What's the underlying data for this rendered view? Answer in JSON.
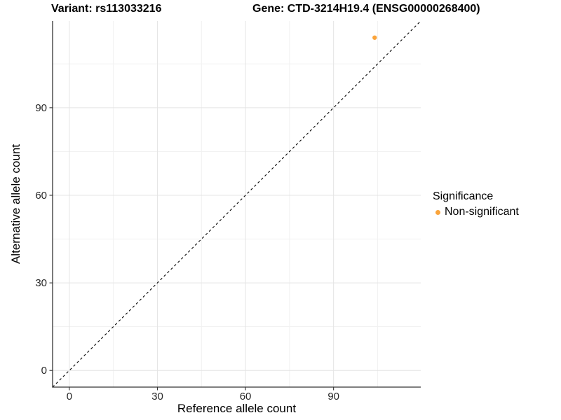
{
  "chart_data": {
    "type": "scatter",
    "title_left": "Variant: rs113033216",
    "title_right": "Gene: CTD-3214H19.4 (ENSG00000268400)",
    "xlabel": "Reference allele count",
    "ylabel": "Alternative allele count",
    "xlim": [
      -5.7,
      119.7
    ],
    "ylim": [
      -5.7,
      119.7
    ],
    "x_ticks": [
      0,
      30,
      60,
      90
    ],
    "y_ticks": [
      0,
      30,
      60,
      90
    ],
    "x_minor_ticks": [
      15,
      45,
      75,
      105
    ],
    "y_minor_ticks": [
      15,
      45,
      75,
      105
    ],
    "grid": "on",
    "identity_line": {
      "style": "dashed",
      "slope": 1,
      "intercept": 0,
      "color": "#000000"
    },
    "series": [
      {
        "name": "Non-significant",
        "color": "#FAA43B",
        "points": [
          {
            "x": 104,
            "y": 114
          }
        ]
      }
    ],
    "legend": {
      "title": "Significance",
      "position": "right",
      "items": [
        {
          "label": "Non-significant",
          "color": "#FAA43B"
        }
      ]
    },
    "style": {
      "background": "#FFFFFF",
      "grid_major_color": "#E4E4E4",
      "grid_minor_color": "#F1F1F1",
      "axis_line_color": "#333333",
      "tick_color": "#333333",
      "tick_label_color": "#262626"
    }
  }
}
